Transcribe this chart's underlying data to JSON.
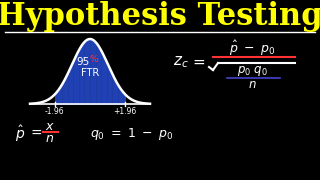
{
  "title": "Hypothesis Testing",
  "title_color": "#FFFF00",
  "title_fontsize": 22,
  "bg_color": "#000000",
  "white": "#FFFFFF",
  "red": "#FF3333",
  "blue_fill": "#2244BB",
  "blue_line": "#4444CC",
  "curve_color": "#FFFFFF"
}
